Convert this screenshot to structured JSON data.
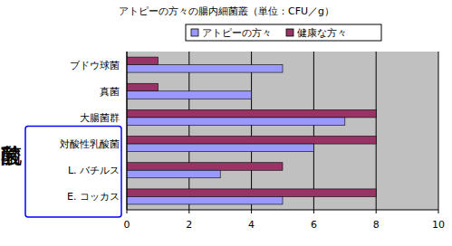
{
  "chart_data": {
    "type": "bar",
    "orientation": "horizontal",
    "title": "アトピーの方々の腸内細菌叢（単位：CFU／g）",
    "categories": [
      "ブドウ球菌",
      "真菌",
      "大腸菌群",
      "対酸性乳酸菌",
      "L. バチルス",
      "E. コッカス"
    ],
    "series": [
      {
        "name": "アトピーの方々",
        "color": "#9999ff",
        "values": [
          5,
          4,
          7,
          6,
          3,
          5
        ]
      },
      {
        "name": "健康な方々",
        "color": "#993366",
        "values": [
          1,
          1,
          8,
          8,
          5,
          8
        ]
      }
    ],
    "xlim": [
      0,
      10
    ],
    "xticks": [
      0,
      2,
      4,
      6,
      8,
      10
    ],
    "grid": true,
    "legend": "top",
    "annotations": [
      "乳酸菌"
    ]
  }
}
